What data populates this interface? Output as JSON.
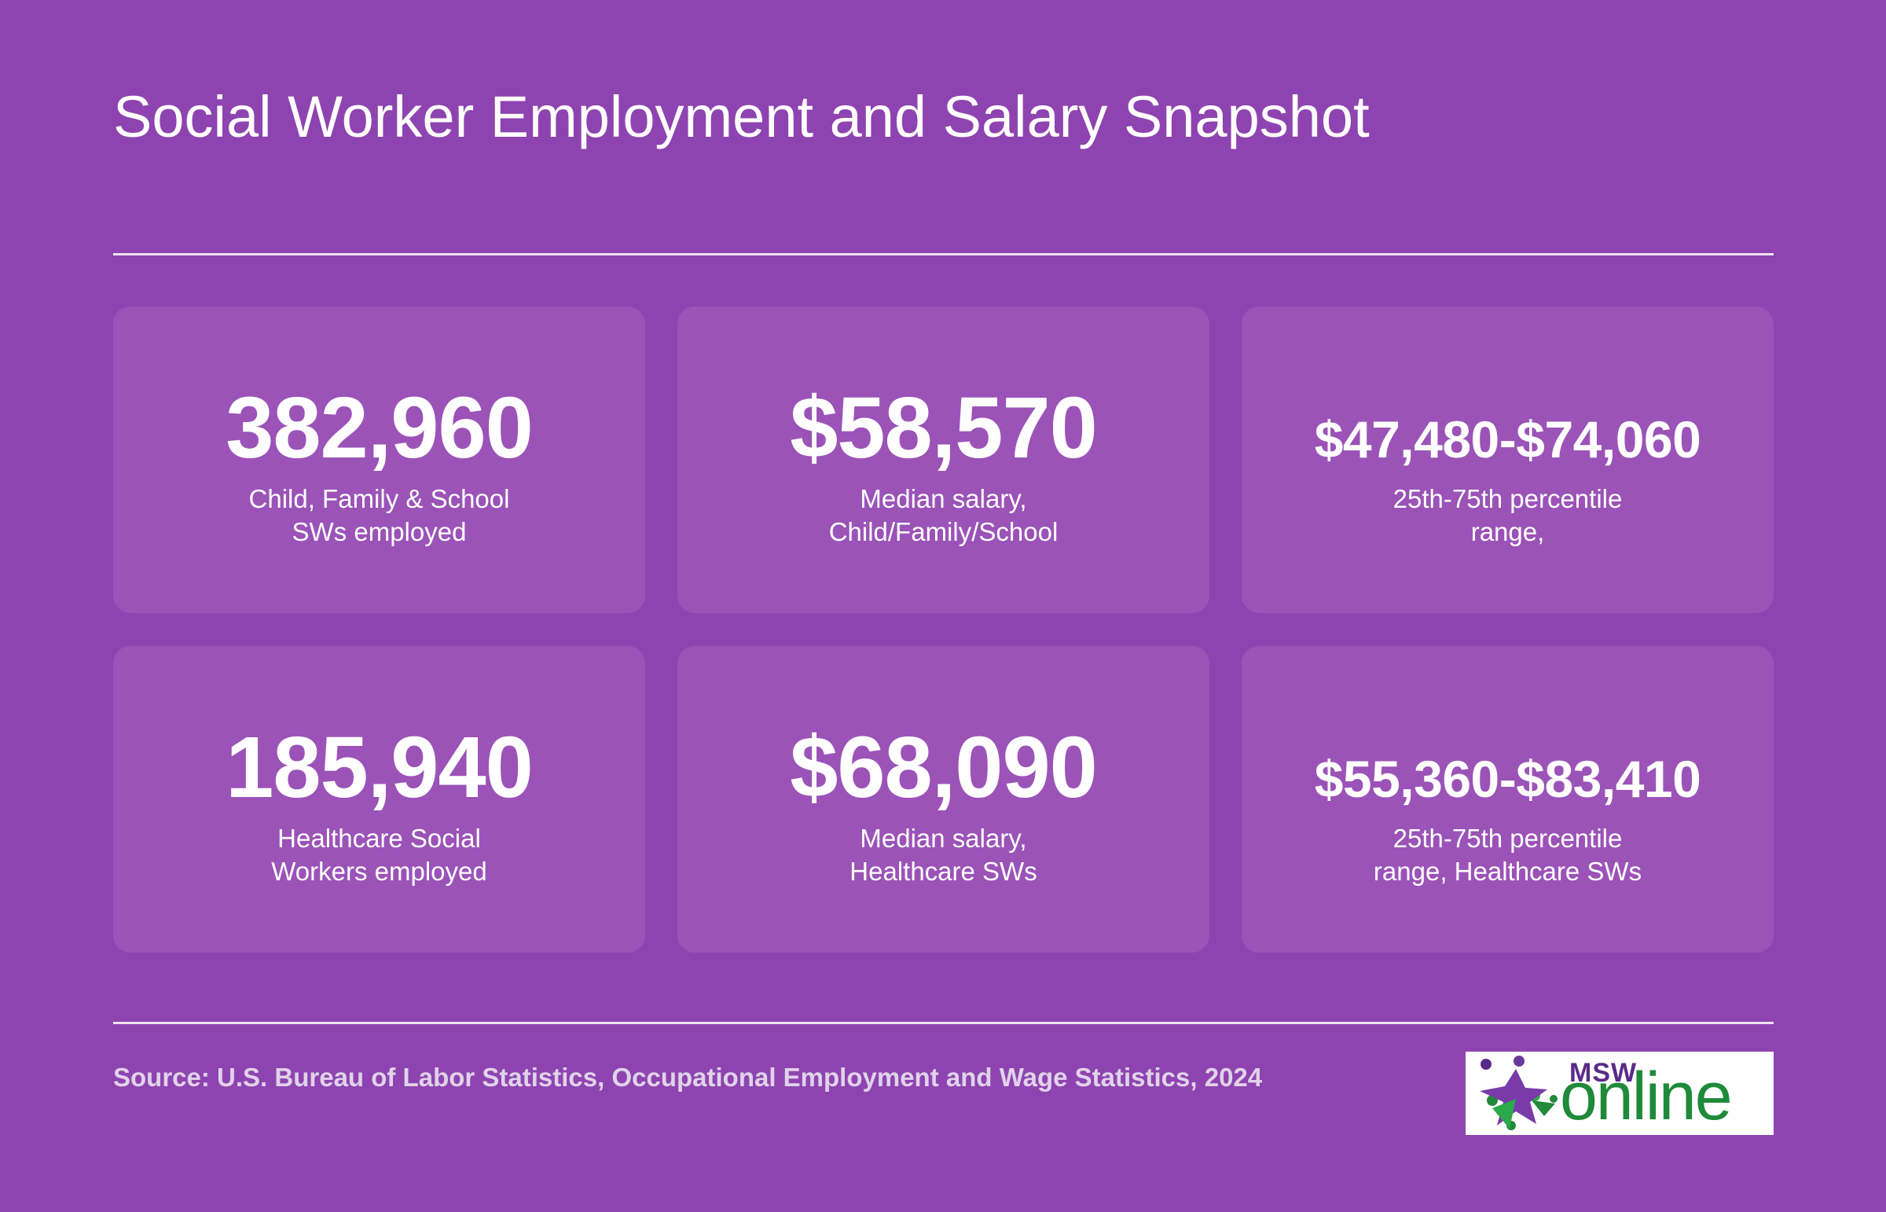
{
  "header": {
    "title": "Social Worker Employment and Salary Snapshot"
  },
  "cards": [
    {
      "value": "382,960",
      "label_line1": "Child, Family & School",
      "label_line2": "SWs employed"
    },
    {
      "value": "$58,570",
      "label_line1": "Median salary,",
      "label_line2": "Child/Family/School"
    },
    {
      "value": "$47,480-$74,060",
      "label_line1": "25th-75th percentile",
      "label_line2": "range,"
    },
    {
      "value": "185,940",
      "label_line1": "Healthcare Social",
      "label_line2": "Workers employed"
    },
    {
      "value": "$68,090",
      "label_line1": "Median salary,",
      "label_line2": "Healthcare SWs"
    },
    {
      "value": "$55,360-$83,410",
      "label_line1": "25th-75th percentile",
      "label_line2": "range, Healthcare SWs"
    }
  ],
  "footer": {
    "source": "Source: U.S. Bureau of Labor Statistics, Occupational Employment and Wage Statistics, 2024",
    "logo": {
      "top_text": "MSW",
      "main_text": "online",
      "icon": "people-star-icon"
    }
  },
  "colors": {
    "background": "#8e44b0",
    "card": "#9b53b8",
    "text": "#ffffff",
    "source_text": "#e0d3ea",
    "logo_green": "#1f8a3a",
    "logo_purple": "#5a2a8a"
  }
}
